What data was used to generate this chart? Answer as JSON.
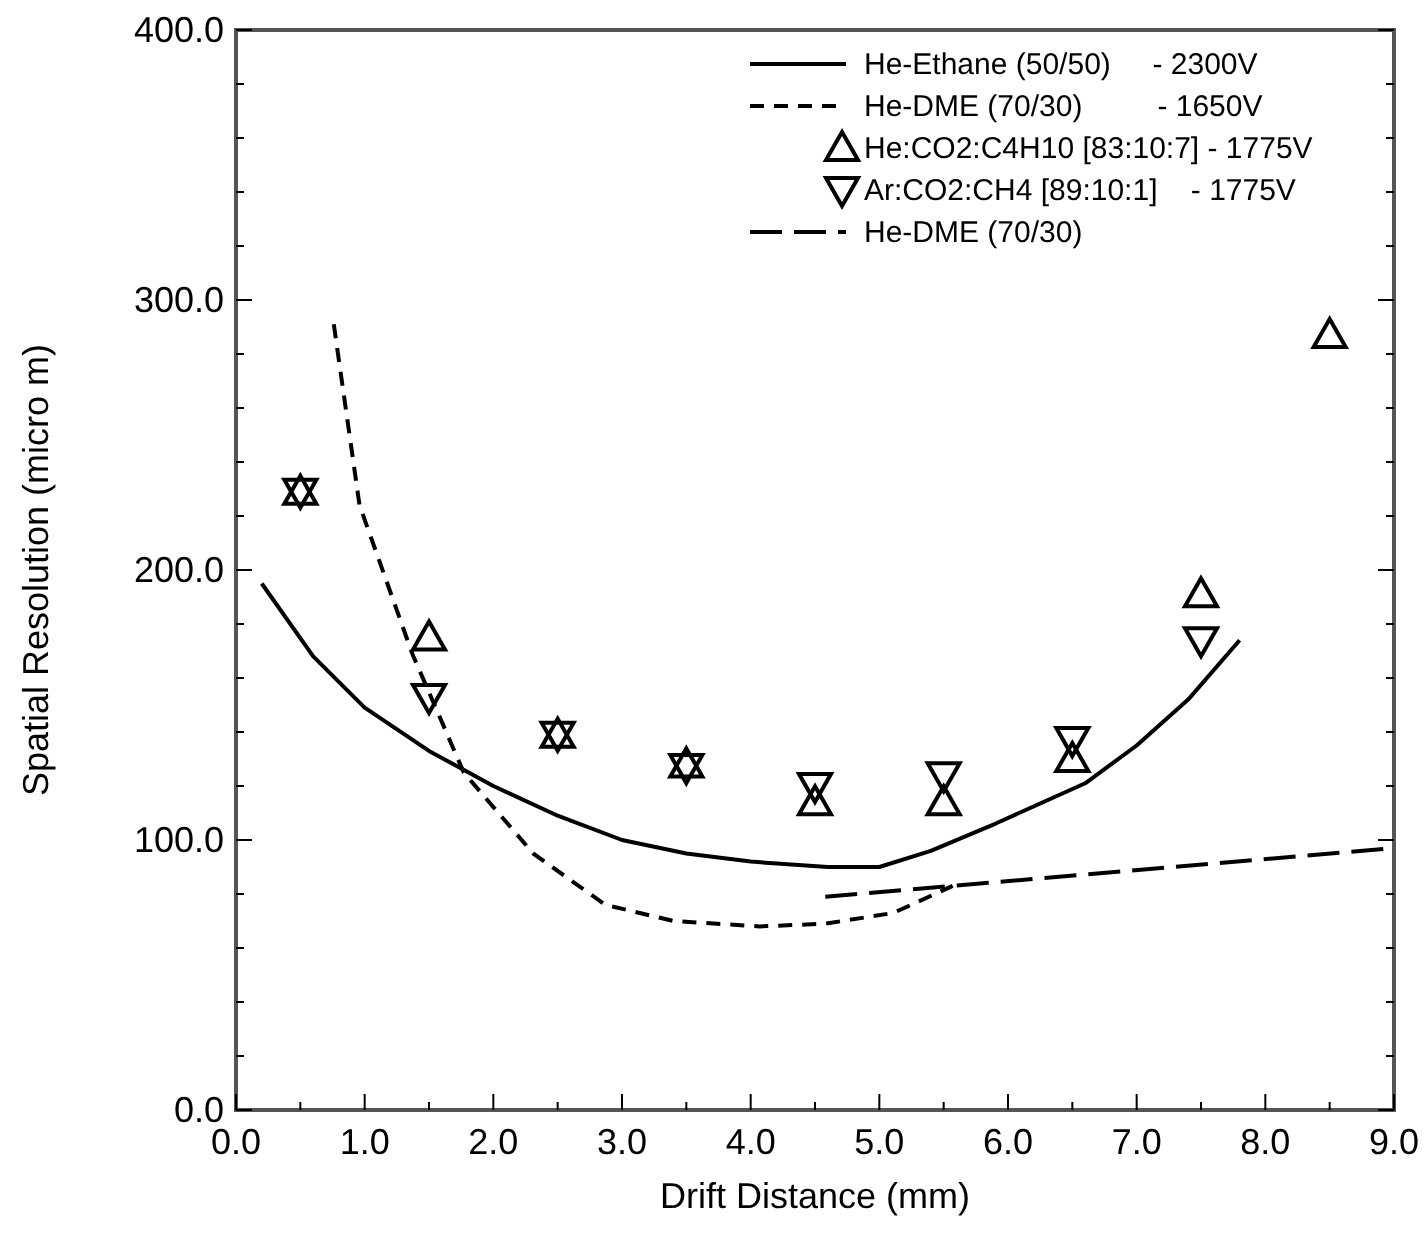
{
  "chart_data": {
    "type": "line",
    "xlabel": "Drift Distance (mm)",
    "ylabel": "Spatial Resolution (micro m)",
    "xlim": [
      0,
      9
    ],
    "ylim": [
      0,
      400
    ],
    "xticks": [
      {
        "value": 0,
        "label": "0.0"
      },
      {
        "value": 0.5,
        "label": null
      },
      {
        "value": 1,
        "label": "1.0"
      },
      {
        "value": 1.5,
        "label": null
      },
      {
        "value": 2,
        "label": "2.0"
      },
      {
        "value": 2.5,
        "label": null
      },
      {
        "value": 3,
        "label": "3.0"
      },
      {
        "value": 3.5,
        "label": null
      },
      {
        "value": 4,
        "label": "4.0"
      },
      {
        "value": 4.5,
        "label": null
      },
      {
        "value": 5,
        "label": "5.0"
      },
      {
        "value": 5.5,
        "label": null
      },
      {
        "value": 6,
        "label": "6.0"
      },
      {
        "value": 6.5,
        "label": null
      },
      {
        "value": 7,
        "label": "7.0"
      },
      {
        "value": 7.5,
        "label": null
      },
      {
        "value": 8,
        "label": "8.0"
      },
      {
        "value": 8.5,
        "label": null
      },
      {
        "value": 9,
        "label": "9.0"
      }
    ],
    "yticks": [
      {
        "value": 0,
        "label": "0.0"
      },
      {
        "value": 20,
        "label": null
      },
      {
        "value": 40,
        "label": null
      },
      {
        "value": 60,
        "label": null
      },
      {
        "value": 80,
        "label": null
      },
      {
        "value": 100,
        "label": "100.0"
      },
      {
        "value": 120,
        "label": null
      },
      {
        "value": 140,
        "label": null
      },
      {
        "value": 160,
        "label": null
      },
      {
        "value": 180,
        "label": null
      },
      {
        "value": 200,
        "label": "200.0"
      },
      {
        "value": 220,
        "label": null
      },
      {
        "value": 240,
        "label": null
      },
      {
        "value": 260,
        "label": null
      },
      {
        "value": 280,
        "label": null
      },
      {
        "value": 300,
        "label": "300.0"
      },
      {
        "value": 320,
        "label": null
      },
      {
        "value": 340,
        "label": null
      },
      {
        "value": 360,
        "label": null
      },
      {
        "value": 380,
        "label": null
      },
      {
        "value": 400,
        "label": "400.0"
      }
    ],
    "grid": false,
    "legend": "top right",
    "series": [
      {
        "name": "He-Ethane (50/50)     - 2300V",
        "line_style": "solid",
        "color": "#000000",
        "x": [
          0.2,
          0.6,
          1.0,
          1.5,
          2.0,
          2.5,
          3.0,
          3.5,
          4.0,
          4.6,
          5.0,
          5.4,
          5.9,
          6.6,
          7.0,
          7.4,
          7.8
        ],
        "values": [
          195,
          168,
          149,
          133,
          120,
          109,
          100,
          95,
          92,
          90,
          90,
          96,
          106,
          121,
          135,
          152,
          174
        ]
      },
      {
        "name": "He-DME (70/30)         - 1650V",
        "line_style": "dashed",
        "color": "#000000",
        "x": [
          0.76,
          0.96,
          1.37,
          1.77,
          2.31,
          2.87,
          3.4,
          4.07,
          4.58,
          5.11,
          5.57
        ],
        "values": [
          291,
          224,
          169,
          125,
          95,
          76,
          70,
          68,
          69,
          73,
          83
        ]
      },
      {
        "name": "He:CO2:C4H10 [83:10:7] - 1775V",
        "type": "scatter",
        "marker": "triangle",
        "color": "#000000",
        "x": [
          0.5,
          1.5,
          2.5,
          3.5,
          4.5,
          5.5,
          6.5,
          7.5,
          8.5
        ],
        "values": [
          229,
          175,
          139,
          128,
          114,
          114,
          130,
          191,
          287
        ]
      },
      {
        "name": "Ar:CO2:CH4 [89:10:1]    - 1775V",
        "type": "scatter",
        "marker": "triangle-down",
        "color": "#000000",
        "x": [
          0.5,
          1.5,
          2.5,
          3.5,
          4.5,
          5.5,
          6.5,
          7.5
        ],
        "values": [
          229,
          153,
          139,
          127,
          120,
          124,
          137,
          174
        ]
      },
      {
        "name": "He-DME (70/30)",
        "line_style": "longdash",
        "color": "#000000",
        "x": [
          4.58,
          9.0
        ],
        "values": [
          79,
          97
        ]
      }
    ]
  }
}
